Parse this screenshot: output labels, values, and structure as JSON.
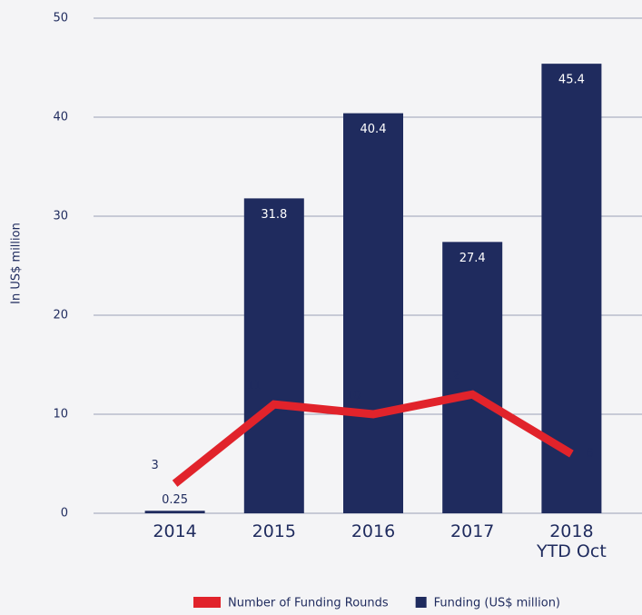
{
  "chart_data": {
    "type": "bar",
    "y_axis_label": "In US$ million",
    "categories": [
      "2014",
      "2015",
      "2016",
      "2017",
      "2018\nYTD Oct"
    ],
    "series": [
      {
        "name": "Number of Funding Rounds",
        "type": "line",
        "axis": "y2",
        "color": "#e1232b",
        "values": [
          3,
          11,
          10,
          12,
          6
        ]
      },
      {
        "name": "Funding (US$ million)",
        "type": "bar",
        "color": "#1f2b5e",
        "values": [
          0.25,
          31.8,
          40.4,
          27.4,
          45.4
        ]
      }
    ],
    "ylim": [
      0,
      50
    ],
    "yticks": [
      0,
      10,
      20,
      30,
      40,
      50
    ],
    "y2lim": [
      0,
      50
    ],
    "grid": true,
    "legend": "bottom"
  }
}
